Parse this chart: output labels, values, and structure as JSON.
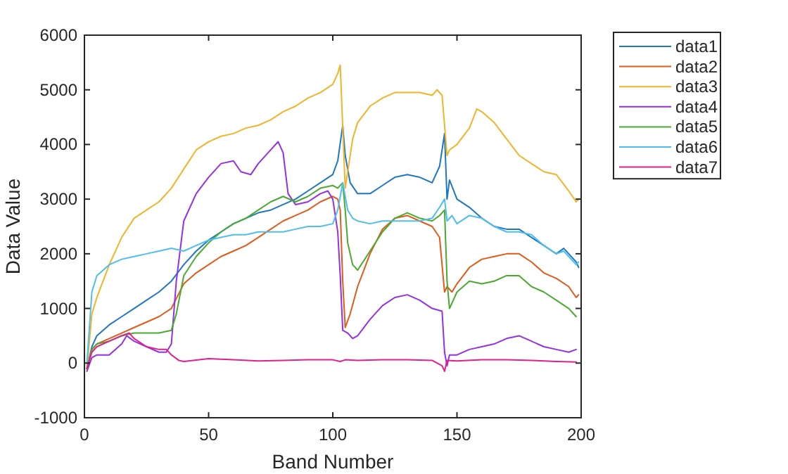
{
  "chart_data": {
    "type": "line",
    "xlabel": "Band Number",
    "ylabel": "Data Value",
    "xlim": [
      0,
      200
    ],
    "ylim": [
      -1000,
      6000
    ],
    "xticks": [
      0,
      50,
      100,
      150,
      200
    ],
    "yticks": [
      -1000,
      0,
      1000,
      2000,
      3000,
      4000,
      5000,
      6000
    ],
    "legend": "top right",
    "grid": false,
    "marker": "none",
    "line_style": "solid",
    "series": [
      {
        "name": "data1",
        "color": "#1f77c4",
        "x": [
          1,
          3,
          5,
          10,
          15,
          20,
          25,
          30,
          35,
          40,
          45,
          50,
          55,
          60,
          65,
          70,
          75,
          80,
          85,
          90,
          95,
          100,
          102,
          104,
          105,
          107,
          110,
          115,
          120,
          125,
          130,
          135,
          140,
          143,
          145,
          146,
          147,
          150,
          155,
          160,
          165,
          170,
          175,
          180,
          185,
          190,
          193,
          195,
          198,
          199
        ],
        "values": [
          -100,
          300,
          500,
          700,
          850,
          1000,
          1150,
          1300,
          1500,
          1800,
          2050,
          2250,
          2400,
          2550,
          2650,
          2750,
          2800,
          2900,
          3000,
          3150,
          3300,
          3450,
          3700,
          4350,
          3800,
          3300,
          3100,
          3100,
          3250,
          3400,
          3450,
          3400,
          3300,
          3600,
          4200,
          3000,
          3350,
          3000,
          2850,
          2650,
          2500,
          2450,
          2450,
          2300,
          2150,
          2000,
          2100,
          2000,
          1850,
          1750
        ]
      },
      {
        "name": "data2",
        "color": "#e05a1a",
        "x": [
          1,
          3,
          5,
          10,
          15,
          20,
          25,
          30,
          35,
          40,
          45,
          50,
          55,
          60,
          65,
          70,
          75,
          80,
          85,
          90,
          95,
          100,
          102,
          103,
          104,
          105,
          107,
          110,
          115,
          120,
          125,
          130,
          135,
          140,
          143,
          145,
          146,
          148,
          150,
          155,
          160,
          165,
          170,
          175,
          180,
          185,
          190,
          195,
          198,
          199
        ],
        "values": [
          -100,
          250,
          350,
          450,
          550,
          650,
          750,
          850,
          1000,
          1450,
          1650,
          1800,
          1950,
          2050,
          2150,
          2300,
          2450,
          2600,
          2700,
          2800,
          2950,
          3050,
          3000,
          2800,
          1500,
          650,
          900,
          1400,
          2000,
          2450,
          2650,
          2700,
          2600,
          2500,
          2300,
          1300,
          1400,
          1300,
          1450,
          1750,
          1900,
          1950,
          2000,
          2000,
          1850,
          1650,
          1550,
          1400,
          1200,
          1250
        ]
      },
      {
        "name": "data3",
        "color": "#f0b429",
        "x": [
          1,
          3,
          5,
          10,
          15,
          20,
          25,
          30,
          35,
          40,
          45,
          50,
          55,
          60,
          65,
          70,
          75,
          80,
          85,
          90,
          95,
          100,
          102,
          103,
          105,
          106,
          108,
          110,
          115,
          120,
          125,
          130,
          135,
          140,
          142,
          144,
          146,
          147,
          150,
          155,
          158,
          160,
          165,
          170,
          175,
          180,
          185,
          190,
          195,
          198,
          199
        ],
        "values": [
          -100,
          900,
          1200,
          1800,
          2300,
          2650,
          2800,
          2950,
          3200,
          3550,
          3900,
          4050,
          4150,
          4200,
          4300,
          4350,
          4450,
          4600,
          4700,
          4850,
          4950,
          5100,
          5300,
          5450,
          3200,
          3500,
          4100,
          4400,
          4700,
          4850,
          4950,
          4950,
          4950,
          4900,
          5000,
          4900,
          3800,
          3900,
          4000,
          4300,
          4650,
          4600,
          4400,
          4100,
          3800,
          3650,
          3500,
          3450,
          3150,
          2950,
          3000
        ]
      },
      {
        "name": "data4",
        "color": "#9430e0",
        "x": [
          1,
          3,
          5,
          10,
          15,
          17,
          20,
          25,
          30,
          33,
          35,
          37,
          40,
          45,
          50,
          55,
          60,
          63,
          67,
          70,
          75,
          78,
          80,
          82,
          85,
          90,
          95,
          98,
          100,
          102,
          103,
          104,
          106,
          108,
          110,
          115,
          120,
          125,
          130,
          135,
          140,
          144,
          145,
          146,
          147,
          150,
          155,
          160,
          165,
          170,
          175,
          180,
          185,
          190,
          195,
          198
        ],
        "values": [
          -150,
          100,
          150,
          150,
          350,
          500,
          400,
          300,
          200,
          200,
          350,
          1500,
          2600,
          3100,
          3400,
          3650,
          3700,
          3500,
          3450,
          3650,
          3900,
          4050,
          3850,
          3100,
          2900,
          2950,
          3100,
          3150,
          3000,
          2400,
          1600,
          600,
          550,
          450,
          500,
          800,
          1050,
          1200,
          1250,
          1150,
          1000,
          950,
          200,
          -50,
          150,
          150,
          250,
          300,
          350,
          450,
          500,
          400,
          300,
          250,
          200,
          250
        ]
      },
      {
        "name": "data5",
        "color": "#4aaa30",
        "x": [
          1,
          3,
          5,
          10,
          15,
          20,
          25,
          30,
          35,
          37,
          40,
          45,
          50,
          55,
          60,
          65,
          70,
          75,
          80,
          85,
          90,
          95,
          100,
          102,
          104,
          105,
          106,
          108,
          110,
          115,
          120,
          125,
          130,
          135,
          140,
          143,
          145,
          146,
          147,
          150,
          155,
          160,
          165,
          170,
          175,
          180,
          185,
          190,
          195,
          198
        ],
        "values": [
          -100,
          250,
          350,
          400,
          500,
          550,
          550,
          550,
          600,
          900,
          1600,
          1950,
          2200,
          2400,
          2550,
          2650,
          2800,
          2950,
          3050,
          2950,
          3050,
          3200,
          3250,
          3200,
          3300,
          2800,
          2200,
          1800,
          1700,
          2050,
          2400,
          2650,
          2750,
          2650,
          2600,
          2700,
          2800,
          1500,
          1000,
          1300,
          1500,
          1450,
          1500,
          1600,
          1600,
          1400,
          1300,
          1150,
          1000,
          850
        ]
      },
      {
        "name": "data6",
        "color": "#4dbeee",
        "x": [
          1,
          3,
          5,
          10,
          15,
          20,
          25,
          30,
          35,
          40,
          45,
          50,
          55,
          60,
          65,
          70,
          75,
          80,
          85,
          90,
          95,
          100,
          102,
          104,
          106,
          108,
          110,
          115,
          120,
          125,
          130,
          135,
          140,
          143,
          145,
          146,
          148,
          150,
          155,
          160,
          165,
          170,
          175,
          180,
          185,
          190,
          193,
          195,
          198,
          199
        ],
        "values": [
          0,
          1300,
          1600,
          1800,
          1900,
          1950,
          2000,
          2050,
          2100,
          2050,
          2150,
          2250,
          2300,
          2350,
          2350,
          2400,
          2400,
          2400,
          2450,
          2500,
          2500,
          2550,
          2800,
          3300,
          2800,
          2650,
          2600,
          2550,
          2600,
          2600,
          2600,
          2600,
          2650,
          2850,
          3000,
          2600,
          2700,
          2550,
          2700,
          2650,
          2500,
          2400,
          2400,
          2350,
          2150,
          2000,
          2050,
          1950,
          1800,
          1850
        ]
      },
      {
        "name": "data7",
        "color": "#e0208c",
        "x": [
          1,
          3,
          5,
          10,
          15,
          18,
          20,
          25,
          30,
          33,
          35,
          38,
          40,
          50,
          60,
          70,
          80,
          90,
          100,
          103,
          105,
          110,
          120,
          130,
          140,
          144,
          145,
          146,
          150,
          160,
          170,
          180,
          190,
          198
        ],
        "values": [
          -100,
          200,
          300,
          400,
          500,
          550,
          450,
          300,
          250,
          250,
          150,
          50,
          30,
          80,
          60,
          40,
          50,
          60,
          60,
          30,
          60,
          50,
          60,
          60,
          50,
          -50,
          -150,
          50,
          40,
          60,
          60,
          50,
          30,
          20
        ]
      }
    ]
  }
}
